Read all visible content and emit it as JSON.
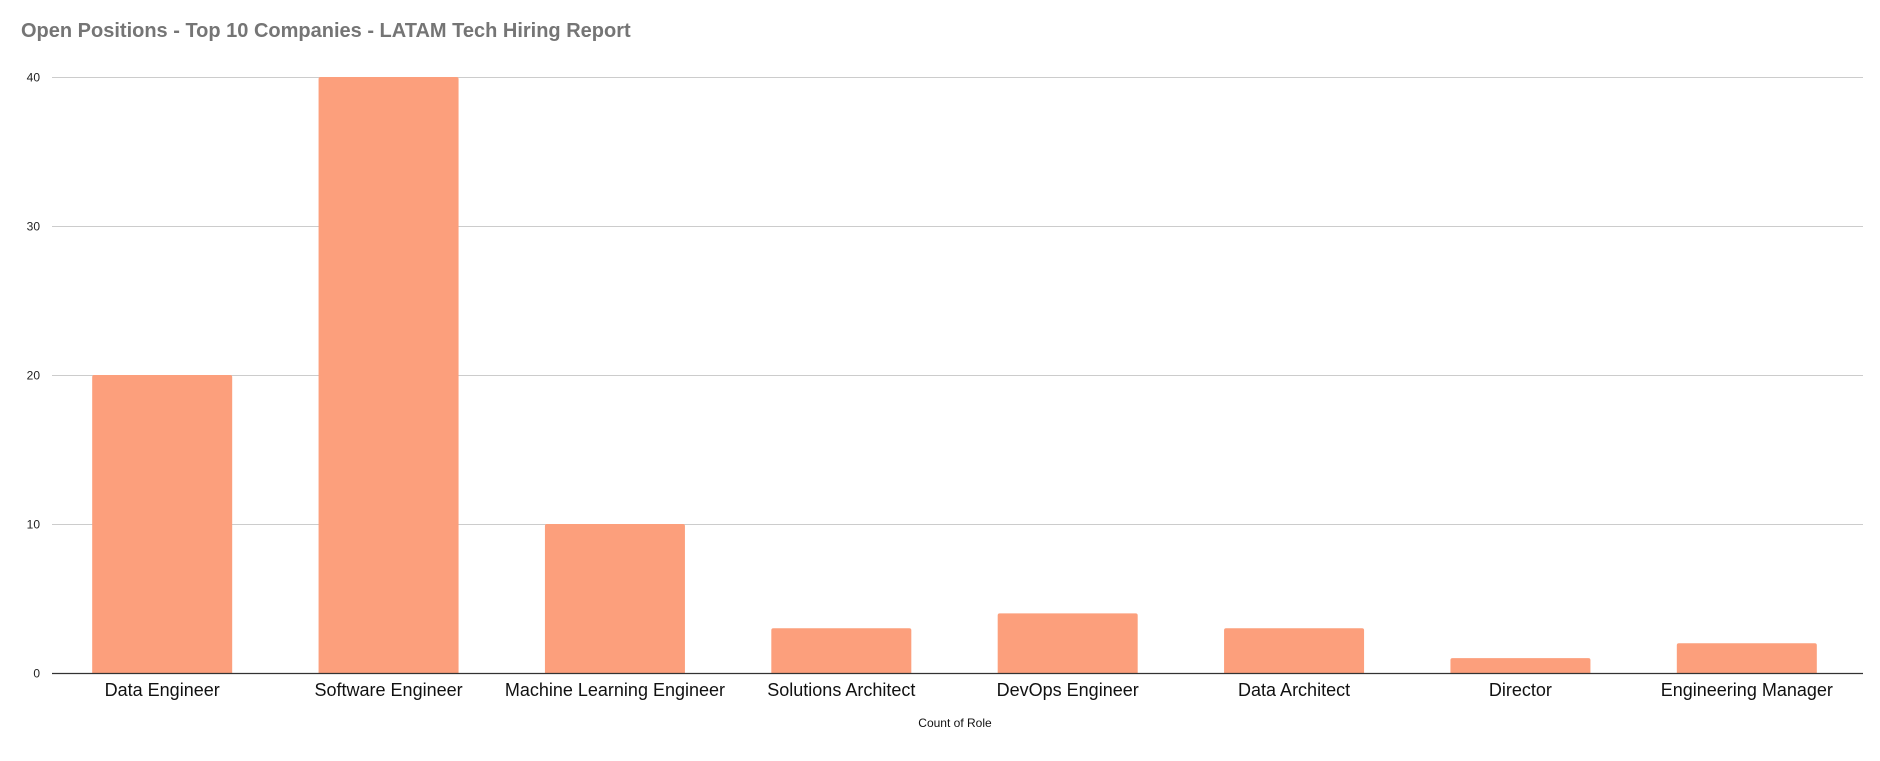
{
  "chart_data": {
    "type": "bar",
    "title": "Open Positions - Top 10 Companies - LATAM Tech Hiring Report",
    "xlabel": "Count of Role",
    "ylabel": "",
    "categories": [
      "Data Engineer",
      "Software Engineer",
      "Machine Learning Engineer",
      "Solutions Architect",
      "DevOps Engineer",
      "Data Architect",
      "Director",
      "Engineering Manager"
    ],
    "values": [
      20,
      40,
      10,
      3,
      4,
      3,
      1,
      2
    ],
    "ylim": [
      0,
      40
    ],
    "yticks": [
      0,
      10,
      20,
      30,
      40
    ],
    "grid": true,
    "legend": "none",
    "bar_color": "#fc9f7c",
    "gridline_color": "#cccccc",
    "axis_color": "#333333",
    "title_color": "#757575"
  }
}
